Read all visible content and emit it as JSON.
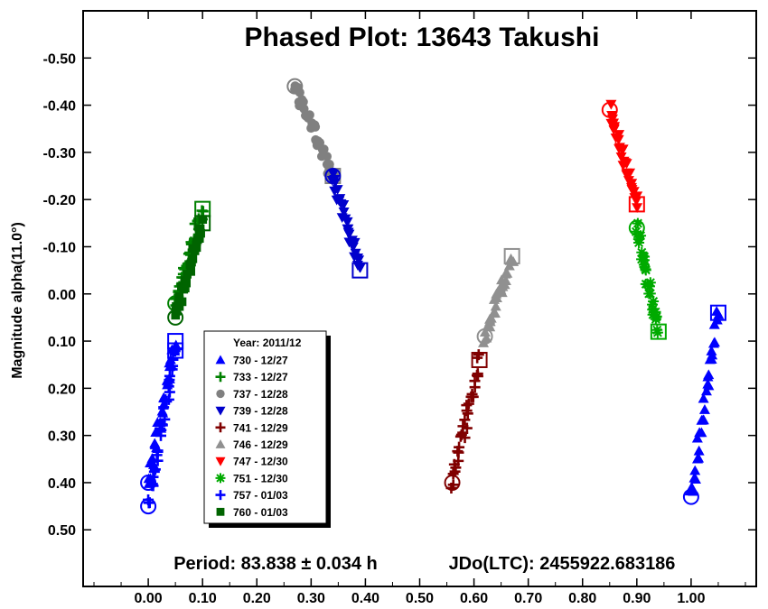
{
  "chart_data": {
    "type": "scatter",
    "title": "Phased Plot: 13643 Takushi",
    "ylabel": "Magnitude alpha(11.0°)",
    "xlabel": "",
    "xlim": [
      -0.12,
      1.12
    ],
    "ylim": [
      0.62,
      -0.6
    ],
    "y_inverted": true,
    "grid": false,
    "x_ticks": [
      "0.00",
      "0.10",
      "0.20",
      "0.30",
      "0.40",
      "0.50",
      "0.60",
      "0.70",
      "0.80",
      "0.90",
      "1.00"
    ],
    "x_tick_values": [
      0,
      0.1,
      0.2,
      0.3,
      0.4,
      0.5,
      0.6,
      0.7,
      0.8,
      0.9,
      1.0
    ],
    "y_ticks": [
      "-0.50",
      "-0.40",
      "-0.30",
      "-0.20",
      "-0.10",
      "0.00",
      "0.10",
      "0.20",
      "0.30",
      "0.40",
      "0.50"
    ],
    "y_tick_values": [
      -0.5,
      -0.4,
      -0.3,
      -0.2,
      -0.1,
      0,
      0.1,
      0.2,
      0.3,
      0.4,
      0.5
    ],
    "legend": {
      "placement": "lower-left",
      "title": "Year: 2011/12",
      "entries": [
        {
          "label": "730 - 12/27",
          "marker": "triangle-up",
          "color": "#0000ff"
        },
        {
          "label": "733 - 12/27",
          "marker": "plus",
          "color": "#008000"
        },
        {
          "label": "737 - 12/28",
          "marker": "circle",
          "color": "#808080"
        },
        {
          "label": "739 - 12/28",
          "marker": "triangle-down",
          "color": "#0000cc"
        },
        {
          "label": "741 - 12/29",
          "marker": "plus",
          "color": "#800000"
        },
        {
          "label": "746 - 12/29",
          "marker": "triangle-up",
          "color": "#909090"
        },
        {
          "label": "747 - 12/30",
          "marker": "triangle-down",
          "color": "#ff0000"
        },
        {
          "label": "751 - 12/30",
          "marker": "asterisk",
          "color": "#00aa00"
        },
        {
          "label": "757 - 01/03",
          "marker": "plus",
          "color": "#0000ff"
        },
        {
          "label": "760 - 01/03",
          "marker": "square",
          "color": "#006400"
        }
      ]
    },
    "series": [
      {
        "name": "730 - 12/27",
        "marker": "triangle-up",
        "color": "#0000ff",
        "x0": 0.0,
        "y0": 0.4,
        "x1": 0.05,
        "y1": 0.1
      },
      {
        "name": "733 - 12/27",
        "marker": "plus",
        "color": "#008000",
        "x0": 0.05,
        "y0": 0.02,
        "x1": 0.1,
        "y1": -0.18
      },
      {
        "name": "737 - 12/28",
        "marker": "circle",
        "color": "#808080",
        "x0": 0.27,
        "y0": -0.44,
        "x1": 0.34,
        "y1": -0.25
      },
      {
        "name": "739 - 12/28",
        "marker": "triangle-down",
        "color": "#0000cc",
        "x0": 0.34,
        "y0": -0.25,
        "x1": 0.39,
        "y1": -0.05
      },
      {
        "name": "741 - 12/29",
        "marker": "plus",
        "color": "#800000",
        "x0": 0.56,
        "y0": 0.4,
        "x1": 0.61,
        "y1": 0.14
      },
      {
        "name": "746 - 12/29",
        "marker": "triangle-up",
        "color": "#909090",
        "x0": 0.62,
        "y0": 0.09,
        "x1": 0.67,
        "y1": -0.08
      },
      {
        "name": "747 - 12/30",
        "marker": "triangle-down",
        "color": "#ff0000",
        "x0": 0.85,
        "y0": -0.39,
        "x1": 0.9,
        "y1": -0.19
      },
      {
        "name": "751 - 12/30",
        "marker": "asterisk",
        "color": "#00aa00",
        "x0": 0.9,
        "y0": -0.14,
        "x1": 0.94,
        "y1": 0.08
      },
      {
        "name": "757 - 01/03",
        "marker": "plus",
        "color": "#0000ff",
        "x0": 0.0,
        "y0": 0.45,
        "x1": 0.05,
        "y1": 0.12
      },
      {
        "name": "760 - 01/03",
        "marker": "square",
        "color": "#006400",
        "x0": 0.05,
        "y0": 0.05,
        "x1": 0.1,
        "y1": -0.15
      }
    ],
    "wrapped_segment": {
      "series": "730 - 12/27",
      "marker": "triangle-up",
      "color": "#0000ff",
      "x0": 1.0,
      "y0": 0.43,
      "x1": 1.05,
      "y1": 0.04
    },
    "annotations": [
      "Period: 83.838 ± 0.034 h",
      "JDo(LTC): 2455922.683186"
    ]
  }
}
